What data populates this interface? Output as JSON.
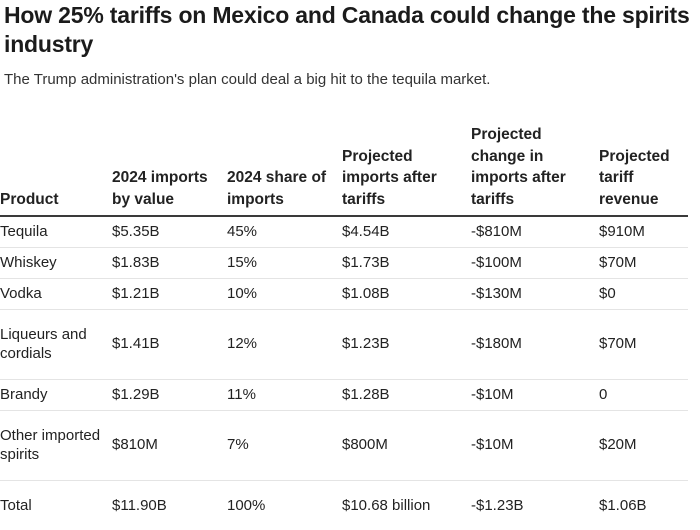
{
  "header": {
    "title": "How 25% tariffs on Mexico and Canada could change the spirits industry",
    "subtitle": "The Trump administration's plan could deal a big hit to the tequila market."
  },
  "table": {
    "columns": [
      "Product",
      "2024 imports by value",
      "2024 share of imports",
      "Projected imports after tariffs",
      "Projected change in imports after tariffs",
      "Projected tariff revenue"
    ],
    "rows": [
      [
        "Tequila",
        "$5.35B",
        "45%",
        "$4.54B",
        "-$810M",
        "$910M"
      ],
      [
        "Whiskey",
        "$1.83B",
        "15%",
        "$1.73B",
        "-$100M",
        "$70M"
      ],
      [
        "Vodka",
        "$1.21B",
        "10%",
        "$1.08B",
        "-$130M",
        "$0"
      ],
      [
        "Liqueurs and cordials",
        "$1.41B",
        "12%",
        "$1.23B",
        "-$180M",
        "$70M"
      ],
      [
        "Brandy",
        "$1.29B",
        "11%",
        "$1.28B",
        "-$10M",
        "0"
      ],
      [
        "Other imported spirits",
        "$810M",
        "7%",
        "$800M",
        "-$10M",
        "$20M"
      ],
      [
        "Total",
        "$11.90B",
        "100%",
        "$10.68 billion",
        "-$1.23B",
        "$1.06B"
      ]
    ]
  }
}
